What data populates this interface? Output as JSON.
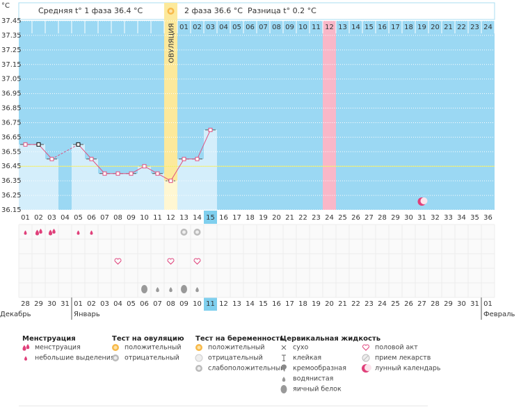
{
  "chart_data": {
    "type": "line",
    "unit_label": "°C",
    "header": {
      "phase1": "Средняя t° 1 фаза 36.4 °C",
      "phase2": "2 фаза 36.6 °C",
      "diff": "Разница t° 0.2 °C"
    },
    "ovulation_label": "ОВУЛЯЦИЯ",
    "ovulation_day": 12,
    "marked_day": 24,
    "today": 15,
    "moon_day": 31,
    "categories": [
      "01",
      "02",
      "03",
      "04",
      "05",
      "06",
      "07",
      "08",
      "09",
      "10",
      "11",
      "12",
      "13",
      "14",
      "15",
      "16",
      "17",
      "18",
      "19",
      "20",
      "21",
      "22",
      "23",
      "24",
      "25",
      "26",
      "27",
      "28",
      "29",
      "30",
      "31",
      "32",
      "33",
      "34",
      "35",
      "36"
    ],
    "phase2_days": [
      null,
      null,
      null,
      null,
      null,
      null,
      null,
      null,
      null,
      null,
      null,
      null,
      "01",
      "02",
      "03",
      "04",
      "05",
      "06",
      "07",
      "08",
      "09",
      "10",
      "11",
      "12",
      "13",
      "14",
      "15",
      "16",
      "17",
      "18",
      "19",
      "20",
      "21",
      "22",
      "23",
      "24"
    ],
    "dates": [
      "28",
      "29",
      "30",
      "31",
      "01",
      "02",
      "03",
      "04",
      "05",
      "06",
      "07",
      "08",
      "09",
      "10",
      "11",
      "12",
      "13",
      "14",
      "15",
      "16",
      "17",
      "18",
      "19",
      "20",
      "21",
      "22",
      "23",
      "24",
      "25",
      "26",
      "27",
      "28",
      "29",
      "30",
      "31",
      "01"
    ],
    "dates_weekend": [
      true,
      true,
      false,
      false,
      false,
      false,
      false,
      true,
      true,
      false,
      false,
      false,
      false,
      false,
      false,
      false,
      false,
      false,
      false,
      false,
      false,
      true,
      true,
      false,
      false,
      false,
      false,
      false,
      true,
      true,
      false,
      false,
      false,
      false,
      false,
      true
    ],
    "months": [
      {
        "label": "Декабрь",
        "start": 1
      },
      {
        "label": "Январь",
        "start": 5
      },
      {
        "label": "Февраль",
        "start": 36
      }
    ],
    "values": [
      36.6,
      36.6,
      36.5,
      null,
      36.6,
      36.5,
      36.4,
      36.4,
      36.4,
      36.45,
      36.4,
      36.35,
      36.5,
      36.5,
      36.7,
      null,
      null,
      null,
      null,
      null,
      null,
      null,
      null,
      null,
      null,
      null,
      null,
      null,
      null,
      null,
      null,
      null,
      null,
      null,
      null,
      null
    ],
    "highlighted_points": [
      2,
      5
    ],
    "color": "#e0507f",
    "coverline": 36.45,
    "ylim": [
      36.15,
      37.45
    ],
    "yticks": [
      37.45,
      37.35,
      37.25,
      37.15,
      37.05,
      36.95,
      36.85,
      36.75,
      36.65,
      36.55,
      36.45,
      36.35,
      36.25,
      36.15
    ],
    "grid": true,
    "symbols": {
      "menstruation": [
        "light",
        "heavy",
        "heavy",
        null,
        "light",
        "light",
        null,
        null,
        null,
        null,
        null,
        null,
        null,
        null,
        null,
        null,
        null,
        null,
        null,
        null,
        null,
        null,
        null,
        null,
        null,
        null,
        null,
        null,
        null,
        null,
        null,
        null,
        null,
        null,
        null,
        null
      ],
      "ovulation_test": [
        null,
        null,
        null,
        null,
        null,
        null,
        null,
        null,
        null,
        null,
        null,
        null,
        "ov_neg",
        "ov_neg",
        null,
        null,
        null,
        null,
        null,
        null,
        null,
        null,
        null,
        null,
        null,
        null,
        null,
        null,
        null,
        null,
        null,
        null,
        null,
        null,
        null,
        null
      ],
      "intercourse": [
        null,
        null,
        null,
        null,
        null,
        null,
        null,
        "heart",
        null,
        null,
        null,
        "heart",
        null,
        "heart",
        null,
        null,
        null,
        null,
        null,
        null,
        null,
        null,
        null,
        null,
        null,
        null,
        null,
        null,
        null,
        null,
        null,
        null,
        null,
        null,
        null,
        null
      ],
      "fluid": [
        null,
        null,
        null,
        null,
        null,
        null,
        null,
        null,
        null,
        "egg_white",
        "watery",
        "watery",
        "egg_white",
        "watery",
        null,
        null,
        null,
        null,
        null,
        null,
        null,
        null,
        null,
        null,
        null,
        null,
        null,
        null,
        null,
        null,
        null,
        null,
        null,
        null,
        null,
        null
      ]
    },
    "legend": [
      {
        "title": "Менструация",
        "items": [
          {
            "label": "менструация",
            "icon": "heavy"
          },
          {
            "label": "небольшие выделения",
            "icon": "light"
          }
        ]
      },
      {
        "title": "Тест на овуляцию",
        "items": [
          {
            "label": "положительный",
            "icon": "ov_pos"
          },
          {
            "label": "отрицательный",
            "icon": "ov_neg"
          }
        ]
      },
      {
        "title": "Тест на беременность",
        "items": [
          {
            "label": "положительный",
            "icon": "preg_pos"
          },
          {
            "label": "отрицательный",
            "icon": "preg_neg"
          },
          {
            "label": "слабоположительный",
            "icon": "preg_weak"
          }
        ]
      },
      {
        "title": "Цервикальная жидкость",
        "items": [
          {
            "label": "сухо",
            "icon": "dry"
          },
          {
            "label": "клейкая",
            "icon": "sticky"
          },
          {
            "label": "кремообразная",
            "icon": "creamy"
          },
          {
            "label": "водянистая",
            "icon": "watery"
          },
          {
            "label": "яичный белок",
            "icon": "egg_white"
          }
        ]
      },
      {
        "items": [
          {
            "label": "половой акт",
            "icon": "heart"
          },
          {
            "label": "прием лекарств",
            "icon": "pill"
          },
          {
            "label": "лунный календарь",
            "icon": "moon"
          }
        ]
      }
    ]
  }
}
